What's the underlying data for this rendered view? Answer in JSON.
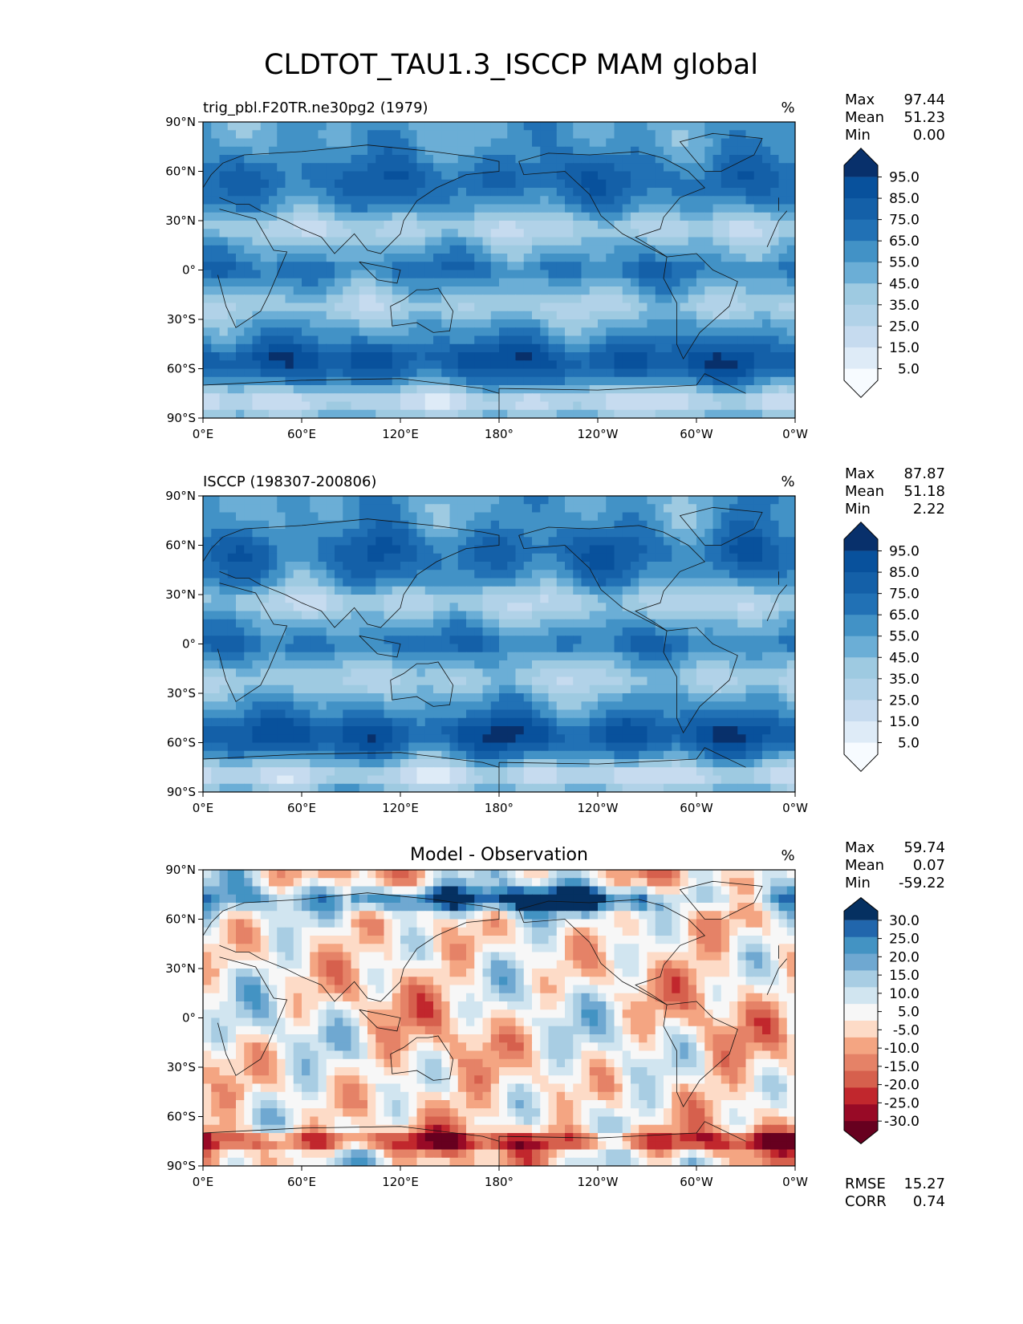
{
  "title": "CLDTOT_TAU1.3_ISCCP MAM global",
  "chart_data": [
    {
      "type": "heatmap",
      "panel": "test",
      "title_left": "trig_pbl.F20TR.ne30pg2 (1979)",
      "title_center": "",
      "units": "%",
      "stats": {
        "max_label": "Max",
        "max": "97.44",
        "mean_label": "Mean",
        "mean": "51.23",
        "min_label": "Min",
        "min": "0.00"
      },
      "colorbar": {
        "ticks": [
          "95.0",
          "85.0",
          "75.0",
          "65.0",
          "55.0",
          "45.0",
          "35.0",
          "25.0",
          "15.0",
          "5.0"
        ]
      },
      "xticks": [
        "0°E",
        "60°E",
        "120°E",
        "180°",
        "120°W",
        "60°W",
        "0°W"
      ],
      "yticks": [
        "90°N",
        "60°N",
        "30°N",
        "0°",
        "30°S",
        "60°S",
        "90°S"
      ]
    },
    {
      "type": "heatmap",
      "panel": "reference",
      "title_left": "ISCCP (198307-200806)",
      "title_center": "",
      "units": "%",
      "stats": {
        "max_label": "Max",
        "max": "87.87",
        "mean_label": "Mean",
        "mean": "51.18",
        "min_label": "Min",
        "min": "2.22"
      },
      "colorbar": {
        "ticks": [
          "95.0",
          "85.0",
          "75.0",
          "65.0",
          "55.0",
          "45.0",
          "35.0",
          "25.0",
          "15.0",
          "5.0"
        ]
      },
      "xticks": [
        "0°E",
        "60°E",
        "120°E",
        "180°",
        "120°W",
        "60°W",
        "0°W"
      ],
      "yticks": [
        "90°N",
        "60°N",
        "30°N",
        "0°",
        "30°S",
        "60°S",
        "90°S"
      ]
    },
    {
      "type": "heatmap",
      "panel": "difference",
      "title_left": "",
      "title_center": "Model - Observation",
      "units": "%",
      "stats": {
        "max_label": "Max",
        "max": "59.74",
        "mean_label": "Mean",
        "mean": "0.07",
        "min_label": "Min",
        "min": "-59.22"
      },
      "extra_stats": {
        "rmse_label": "RMSE",
        "rmse": "15.27",
        "corr_label": "CORR",
        "corr": "0.74"
      },
      "colorbar": {
        "ticks": [
          "30.0",
          "25.0",
          "20.0",
          "15.0",
          "10.0",
          "5.0",
          "-5.0",
          "-10.0",
          "-15.0",
          "-20.0",
          "-25.0",
          "-30.0"
        ]
      },
      "xticks": [
        "0°E",
        "60°E",
        "120°E",
        "180°",
        "120°W",
        "60°W",
        "0°W"
      ],
      "yticks": [
        "90°N",
        "60°N",
        "30°N",
        "0°",
        "30°S",
        "60°S",
        "90°S"
      ]
    }
  ]
}
